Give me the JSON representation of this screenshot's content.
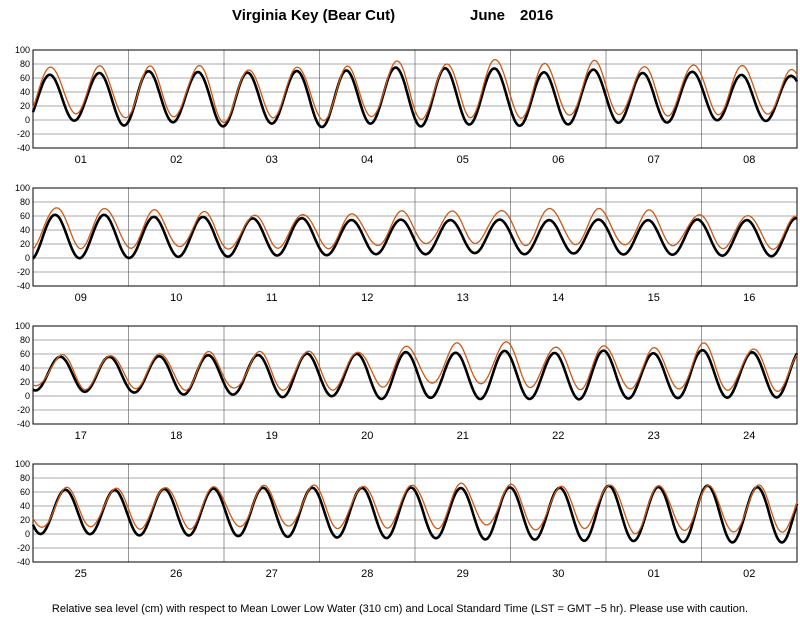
{
  "header": {
    "station": "Virginia Key (Bear Cut)",
    "month": "June",
    "year": "2016"
  },
  "footer": {
    "caption": "Relative sea level (cm) with respect to Mean Lower Low Water (310 cm) and Local Standard Time (LST = GMT −5 hr). Please use with caution."
  },
  "colors": {
    "observed": "#cc5a16",
    "predicted": "#000000",
    "grid": "#555555"
  },
  "chart_data": [
    {
      "type": "line",
      "panel": 1,
      "days": [
        "01",
        "02",
        "03",
        "04",
        "05",
        "06",
        "07",
        "08"
      ],
      "ylim": [
        -40,
        100
      ],
      "yticks": [
        100,
        80,
        60,
        40,
        20,
        0,
        -20,
        -40
      ],
      "series": [
        {
          "key": "predicted",
          "peaks": [
            64,
            66,
            70,
            69,
            67,
            70,
            70,
            75,
            74,
            74,
            68,
            72,
            67,
            69,
            64,
            63
          ],
          "troughs": [
            -5,
            0,
            -10,
            -1,
            -12,
            -2,
            -14,
            0,
            -15,
            0,
            -15,
            2,
            -10,
            4,
            -6,
            6
          ]
        },
        {
          "key": "observed",
          "peaks": [
            76,
            78,
            74,
            80,
            72,
            76,
            74,
            84,
            80,
            88,
            80,
            84,
            76,
            80,
            78,
            70
          ],
          "troughs": [
            5,
            10,
            0,
            5,
            -5,
            8,
            -5,
            8,
            -3,
            10,
            -2,
            12,
            2,
            12,
            5,
            12
          ]
        }
      ]
    },
    {
      "type": "line",
      "panel": 2,
      "days": [
        "09",
        "10",
        "11",
        "12",
        "13",
        "14",
        "15",
        "16"
      ],
      "ylim": [
        -40,
        100
      ],
      "yticks": [
        100,
        80,
        60,
        40,
        20,
        0,
        -20,
        -40
      ],
      "series": [
        {
          "key": "predicted",
          "peaks": [
            60,
            64,
            58,
            60,
            56,
            58,
            54,
            55,
            54,
            55,
            54,
            55,
            54,
            55,
            54,
            57
          ],
          "troughs": [
            -3,
            0,
            0,
            2,
            2,
            4,
            4,
            6,
            5,
            8,
            4,
            8,
            3,
            6,
            1,
            4
          ]
        },
        {
          "key": "observed",
          "peaks": [
            72,
            74,
            68,
            68,
            60,
            64,
            62,
            66,
            66,
            68,
            72,
            70,
            68,
            62,
            62,
            60
          ],
          "troughs": [
            12,
            15,
            14,
            15,
            12,
            16,
            14,
            18,
            20,
            22,
            18,
            20,
            16,
            18,
            12,
            15
          ]
        }
      ]
    },
    {
      "type": "line",
      "panel": 3,
      "days": [
        "17",
        "18",
        "19",
        "20",
        "21",
        "22",
        "23",
        "24"
      ],
      "ylim": [
        -40,
        100
      ],
      "yticks": [
        100,
        80,
        60,
        40,
        20,
        0,
        -20,
        -40
      ],
      "series": [
        {
          "key": "predicted",
          "peaks": [
            54,
            58,
            54,
            60,
            56,
            62,
            58,
            64,
            60,
            66,
            60,
            66,
            60,
            66,
            62,
            66
          ],
          "troughs": [
            8,
            6,
            5,
            2,
            2,
            -2,
            0,
            -5,
            -2,
            -5,
            -4,
            -5,
            -3,
            -3,
            -2,
            -2
          ]
        },
        {
          "key": "observed",
          "peaks": [
            54,
            62,
            56,
            66,
            58,
            68,
            60,
            70,
            72,
            80,
            70,
            74,
            66,
            76,
            68,
            66
          ],
          "troughs": [
            14,
            10,
            12,
            8,
            10,
            8,
            10,
            14,
            18,
            16,
            12,
            10,
            10,
            8,
            8,
            8
          ]
        }
      ]
    },
    {
      "type": "line",
      "panel": 4,
      "days": [
        "25",
        "26",
        "27",
        "28",
        "29",
        "30",
        "01",
        "02"
      ],
      "ylim": [
        -40,
        100
      ],
      "yticks": [
        100,
        80,
        60,
        40,
        20,
        0,
        -20,
        -40
      ],
      "series": [
        {
          "key": "predicted",
          "peaks": [
            62,
            64,
            62,
            66,
            64,
            68,
            64,
            68,
            64,
            68,
            64,
            70,
            66,
            70,
            66,
            70
          ],
          "troughs": [
            0,
            0,
            -2,
            -2,
            -3,
            -4,
            -5,
            -6,
            -6,
            -8,
            -8,
            -10,
            -10,
            -12,
            -12,
            -12
          ]
        },
        {
          "key": "observed",
          "peaks": [
            60,
            68,
            64,
            70,
            66,
            70,
            68,
            70,
            72,
            72,
            66,
            72,
            70,
            68,
            68,
            72
          ],
          "troughs": [
            8,
            10,
            8,
            8,
            10,
            10,
            8,
            10,
            8,
            12,
            4,
            10,
            0,
            6,
            0,
            4
          ]
        }
      ]
    }
  ]
}
